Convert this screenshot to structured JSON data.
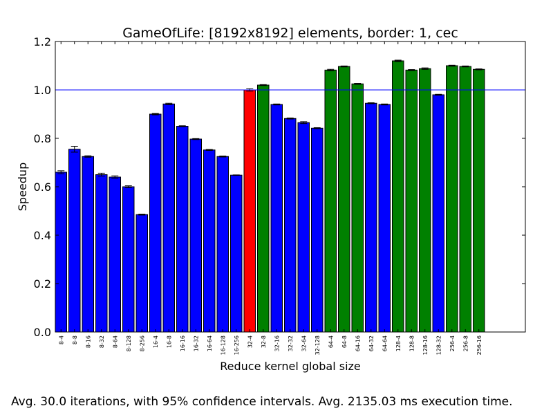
{
  "chart_data": {
    "type": "bar",
    "title": "GameOfLife: [8192x8192] elements, border: 1, cec",
    "xlabel": "Reduce kernel global size",
    "ylabel": "Speedup",
    "ylim": [
      0.0,
      1.2
    ],
    "yticks": [
      "0.0",
      "0.2",
      "0.4",
      "0.6",
      "0.8",
      "1.0",
      "1.2"
    ],
    "ytick_values": [
      0.0,
      0.2,
      0.4,
      0.6,
      0.8,
      1.0,
      1.2
    ],
    "reference_line": 1.0,
    "grid": false,
    "colors": {
      "below": "#0000ff",
      "baseline": "#ff0000",
      "above": "#008000",
      "refline": "#0000ff"
    },
    "categories": [
      "8-4",
      "8-8",
      "8-16",
      "8-32",
      "8-64",
      "8-128",
      "8-256",
      "16-4",
      "16-8",
      "16-16",
      "16-32",
      "16-64",
      "16-128",
      "16-256",
      "32-4",
      "32-8",
      "32-16",
      "32-32",
      "32-64",
      "32-128",
      "64-4",
      "64-8",
      "64-16",
      "64-32",
      "64-64",
      "128-4",
      "128-8",
      "128-16",
      "128-32",
      "256-4",
      "256-8",
      "256-16"
    ],
    "values": [
      0.66,
      0.755,
      0.725,
      0.65,
      0.64,
      0.6,
      0.485,
      0.9,
      0.942,
      0.85,
      0.797,
      0.752,
      0.725,
      0.648,
      1.0,
      1.02,
      0.94,
      0.882,
      0.865,
      0.842,
      1.082,
      1.097,
      1.025,
      0.945,
      0.94,
      1.12,
      1.082,
      1.088,
      0.98,
      1.1,
      1.097,
      1.085
    ],
    "errors": [
      0.006,
      0.012,
      0.003,
      0.006,
      0.005,
      0.004,
      0.002,
      0.003,
      0.003,
      0.002,
      0.002,
      0.002,
      0.002,
      0.001,
      0.005,
      0.002,
      0.002,
      0.002,
      0.004,
      0.002,
      0.003,
      0.002,
      0.002,
      0.002,
      0.002,
      0.003,
      0.002,
      0.003,
      0.002,
      0.002,
      0.002,
      0.002
    ],
    "bar_color_keys": [
      "below",
      "below",
      "below",
      "below",
      "below",
      "below",
      "below",
      "below",
      "below",
      "below",
      "below",
      "below",
      "below",
      "below",
      "baseline",
      "above",
      "below",
      "below",
      "below",
      "below",
      "above",
      "above",
      "above",
      "below",
      "below",
      "above",
      "above",
      "above",
      "below",
      "above",
      "above",
      "above"
    ]
  },
  "caption": "Avg. 30.0 iterations, with 95% confidence intervals. Avg. 2135.03 ms execution time."
}
